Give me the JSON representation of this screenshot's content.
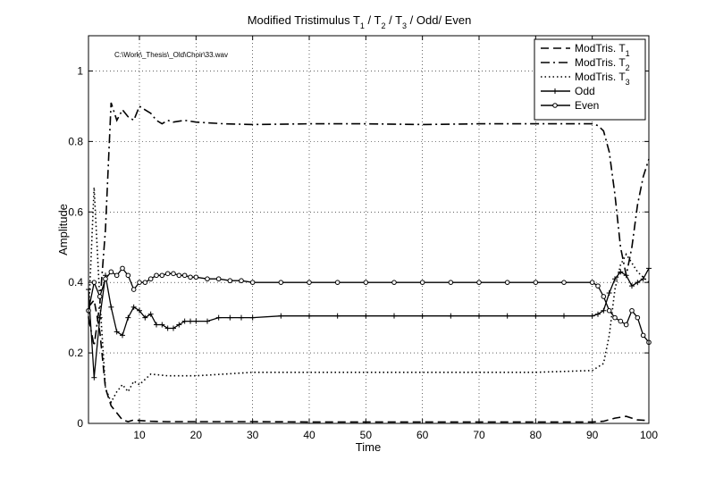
{
  "chart_data": {
    "type": "line",
    "title": "Modified Tristimulus T",
    "title_parts": [
      "Modified Tristimulus T",
      "1",
      " / T",
      "2",
      " / T",
      "3",
      " / Odd/ Even"
    ],
    "annotation": "C:\\Work\\_Thesis\\_Old\\Choir\\33.wav",
    "xlabel": "Time",
    "ylabel": "Amplitude",
    "xlim": [
      1,
      100
    ],
    "ylim": [
      0,
      1.1
    ],
    "x_ticks": [
      10,
      20,
      30,
      40,
      50,
      60,
      70,
      80,
      90,
      100
    ],
    "y_ticks": [
      0,
      0.2,
      0.4,
      0.6,
      0.8,
      1
    ],
    "x_tick_labels": [
      "10",
      "20",
      "30",
      "40",
      "50",
      "60",
      "70",
      "80",
      "90",
      "100"
    ],
    "y_tick_labels": [
      "0",
      "0.2",
      "0.4",
      "0.6",
      "0.8",
      "1"
    ],
    "grid": true,
    "legend_position": "top-right",
    "series": [
      {
        "name": "ModTris. T",
        "subscript": "1",
        "style": "dashed",
        "marker": "none",
        "x": [
          1,
          2,
          3,
          4,
          5,
          6,
          7,
          8,
          9,
          10,
          12,
          15,
          20,
          30,
          40,
          50,
          60,
          70,
          80,
          90,
          92,
          94,
          96,
          98,
          100
        ],
        "values": [
          0.33,
          0.35,
          0.26,
          0.1,
          0.05,
          0.03,
          0.01,
          0.005,
          0.01,
          0.008,
          0.006,
          0.005,
          0.005,
          0.005,
          0.004,
          0.004,
          0.004,
          0.004,
          0.004,
          0.004,
          0.006,
          0.015,
          0.02,
          0.01,
          0.008
        ]
      },
      {
        "name": "ModTris. T",
        "subscript": "2",
        "style": "dashdot",
        "marker": "none",
        "x": [
          1,
          2,
          3,
          4,
          5,
          6,
          7,
          8,
          9,
          10,
          11,
          12,
          13,
          14,
          15,
          16,
          18,
          20,
          25,
          30,
          40,
          50,
          60,
          70,
          80,
          88,
          90,
          91,
          92,
          93,
          94,
          95,
          96,
          97,
          98,
          99,
          100
        ],
        "values": [
          0.3,
          0.22,
          0.34,
          0.55,
          0.91,
          0.86,
          0.89,
          0.87,
          0.86,
          0.9,
          0.89,
          0.88,
          0.86,
          0.85,
          0.86,
          0.855,
          0.86,
          0.855,
          0.85,
          0.848,
          0.85,
          0.85,
          0.848,
          0.85,
          0.85,
          0.85,
          0.85,
          0.845,
          0.83,
          0.77,
          0.65,
          0.5,
          0.42,
          0.5,
          0.62,
          0.7,
          0.75
        ]
      },
      {
        "name": "ModTris. T",
        "subscript": "3",
        "style": "dotted",
        "marker": "none",
        "x": [
          1,
          2,
          3,
          4,
          5,
          6,
          7,
          8,
          9,
          10,
          12,
          15,
          20,
          25,
          30,
          40,
          50,
          60,
          70,
          80,
          90,
          92,
          93,
          94,
          95,
          96,
          98,
          100
        ],
        "values": [
          0.3,
          0.67,
          0.35,
          0.1,
          0.06,
          0.09,
          0.11,
          0.09,
          0.12,
          0.11,
          0.14,
          0.135,
          0.135,
          0.14,
          0.145,
          0.145,
          0.145,
          0.145,
          0.145,
          0.145,
          0.15,
          0.17,
          0.25,
          0.38,
          0.45,
          0.48,
          0.43,
          0.4
        ]
      },
      {
        "name": "Odd",
        "subscript": "",
        "style": "solid",
        "marker": "plus",
        "x": [
          1,
          2,
          3,
          4,
          5,
          6,
          7,
          8,
          9,
          10,
          11,
          12,
          13,
          14,
          15,
          16,
          17,
          18,
          19,
          20,
          22,
          24,
          26,
          28,
          30,
          35,
          40,
          45,
          50,
          55,
          60,
          65,
          70,
          75,
          80,
          85,
          90,
          91,
          92,
          93,
          94,
          95,
          96,
          97,
          98,
          99,
          100
        ],
        "values": [
          0.38,
          0.13,
          0.3,
          0.42,
          0.33,
          0.26,
          0.25,
          0.3,
          0.33,
          0.32,
          0.3,
          0.31,
          0.28,
          0.28,
          0.27,
          0.27,
          0.28,
          0.29,
          0.29,
          0.29,
          0.29,
          0.3,
          0.3,
          0.3,
          0.3,
          0.305,
          0.305,
          0.305,
          0.305,
          0.305,
          0.305,
          0.305,
          0.305,
          0.305,
          0.305,
          0.305,
          0.305,
          0.31,
          0.32,
          0.37,
          0.41,
          0.43,
          0.42,
          0.39,
          0.4,
          0.41,
          0.44
        ]
      },
      {
        "name": "Even",
        "subscript": "",
        "style": "solid",
        "marker": "circle",
        "x": [
          1,
          2,
          3,
          4,
          5,
          6,
          7,
          8,
          9,
          10,
          11,
          12,
          13,
          14,
          15,
          16,
          17,
          18,
          19,
          20,
          22,
          24,
          26,
          28,
          30,
          35,
          40,
          45,
          50,
          55,
          60,
          65,
          70,
          75,
          80,
          85,
          90,
          91,
          92,
          93,
          94,
          95,
          96,
          97,
          98,
          99,
          100
        ],
        "values": [
          0.32,
          0.4,
          0.36,
          0.41,
          0.43,
          0.42,
          0.44,
          0.42,
          0.38,
          0.4,
          0.4,
          0.41,
          0.42,
          0.42,
          0.425,
          0.425,
          0.42,
          0.42,
          0.415,
          0.415,
          0.41,
          0.41,
          0.405,
          0.405,
          0.4,
          0.4,
          0.4,
          0.4,
          0.4,
          0.4,
          0.4,
          0.4,
          0.4,
          0.4,
          0.4,
          0.4,
          0.4,
          0.39,
          0.36,
          0.32,
          0.3,
          0.29,
          0.28,
          0.32,
          0.3,
          0.25,
          0.23
        ]
      }
    ]
  }
}
